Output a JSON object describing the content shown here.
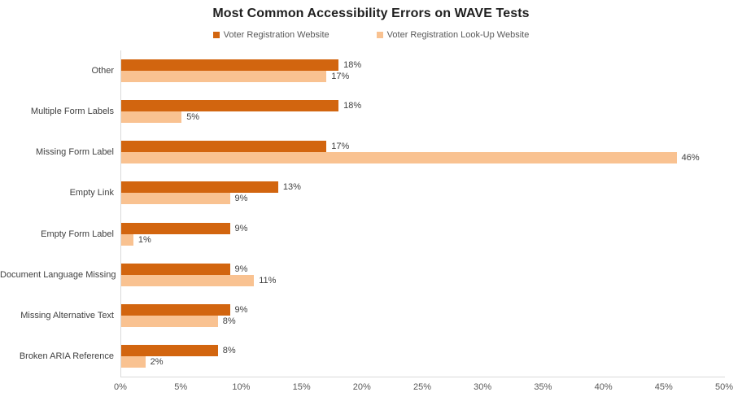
{
  "chart_data": {
    "type": "bar",
    "orientation": "horizontal",
    "title": "Most Common Accessibility Errors on WAVE Tests",
    "categories": [
      "Other",
      "Multiple Form Labels",
      "Missing Form Label",
      "Empty Link",
      "Empty Form Label",
      "Document Language Missing",
      "Missing Alternative Text",
      "Broken ARIA Reference"
    ],
    "series": [
      {
        "name": "Voter Registration Website",
        "color": "#D2650F",
        "values": [
          18,
          18,
          17,
          13,
          9,
          9,
          9,
          8
        ],
        "data_labels": [
          "18%",
          "18%",
          "17%",
          "13%",
          "9%",
          "9%",
          "9%",
          "8%"
        ]
      },
      {
        "name": "Voter Registration Look-Up Website",
        "color": "#F9C291",
        "values": [
          17,
          5,
          46,
          9,
          1,
          11,
          8,
          2
        ],
        "data_labels": [
          "17%",
          "5%",
          "46%",
          "9%",
          "1%",
          "11%",
          "8%",
          "2%"
        ]
      }
    ],
    "x_axis": {
      "min": 0,
      "max": 50,
      "tick_step": 5,
      "tick_labels": [
        "0%",
        "5%",
        "10%",
        "15%",
        "20%",
        "25%",
        "30%",
        "35%",
        "40%",
        "45%",
        "50%"
      ]
    },
    "grid": false,
    "legend_position": "top",
    "colors": {
      "axis_line": "#D9D9D9",
      "title_text": "#1F1F1F",
      "label_text": "#404040",
      "tick_text": "#595959",
      "legend_text": "#595959",
      "background": "#FFFFFF"
    }
  }
}
